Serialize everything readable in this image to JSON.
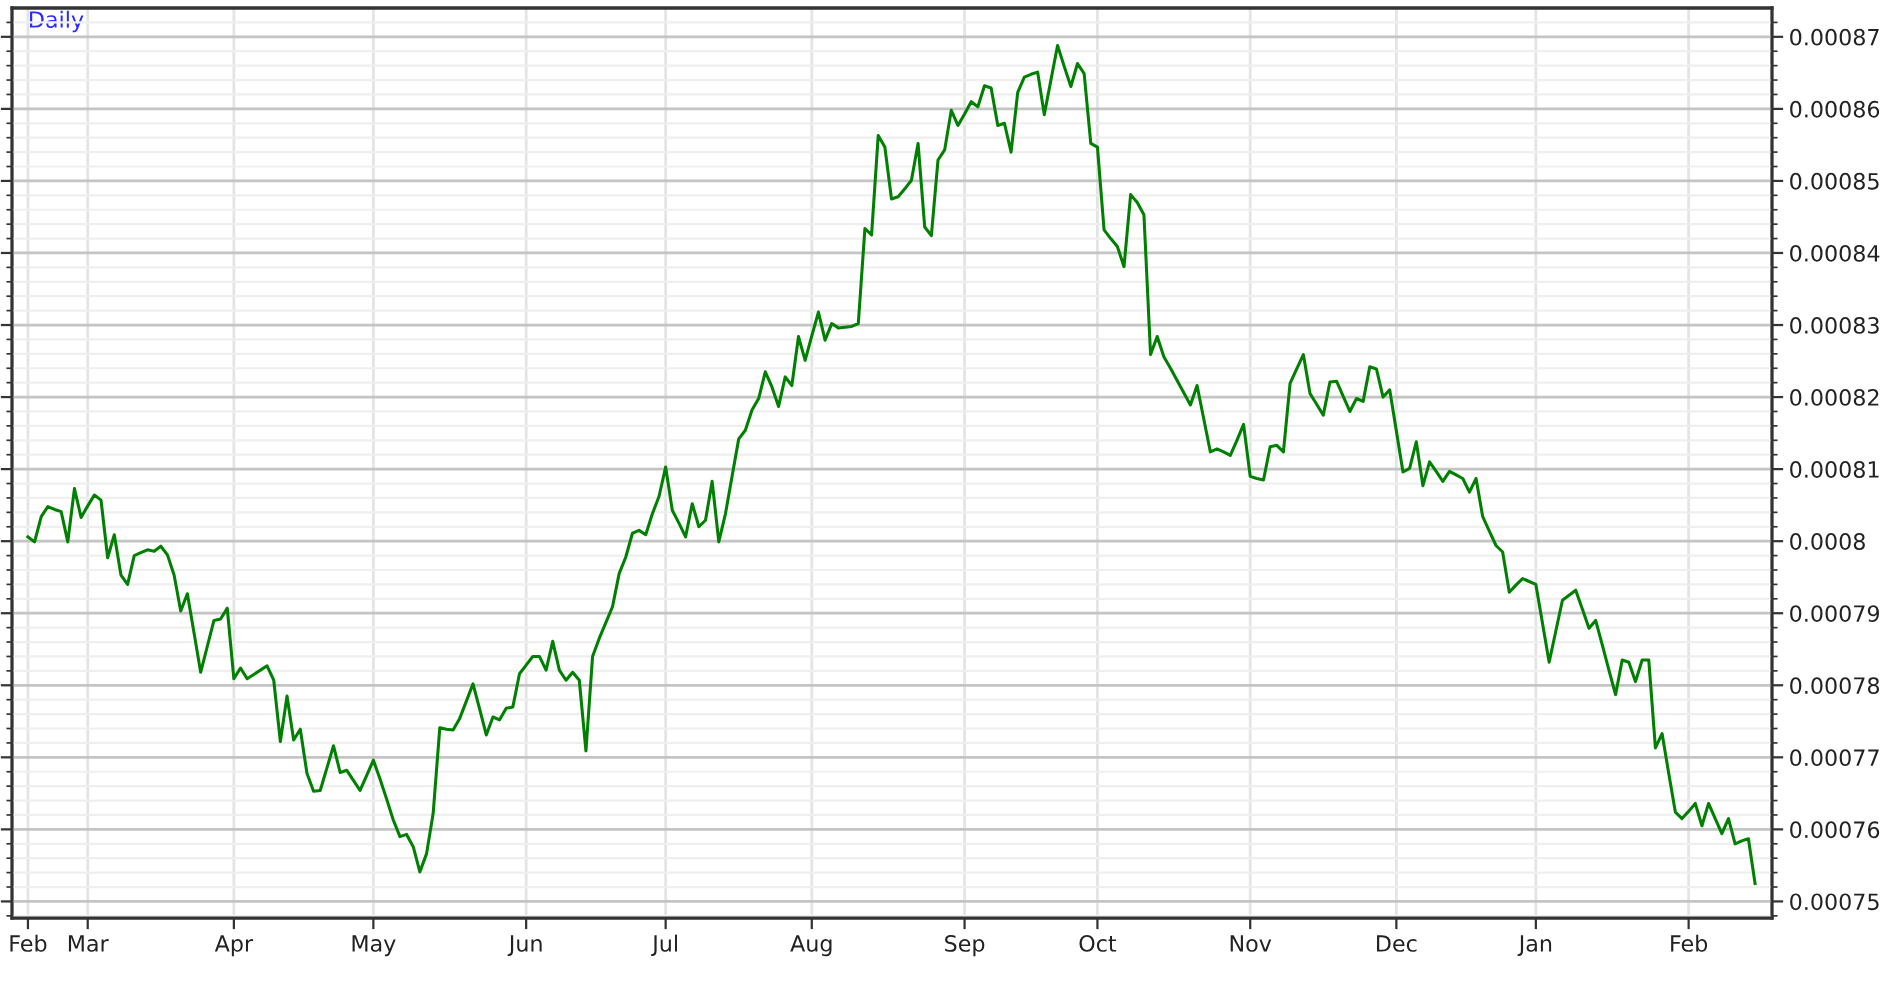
{
  "chart_data": {
    "type": "line",
    "title": "Daily",
    "categories": [
      "Feb",
      null,
      null,
      null,
      null,
      null,
      null,
      null,
      null,
      "Mar",
      null,
      null,
      null,
      null,
      null,
      null,
      null,
      null,
      null,
      null,
      null,
      null,
      null,
      null,
      null,
      null,
      null,
      null,
      null,
      null,
      null,
      "Apr",
      null,
      null,
      null,
      null,
      null,
      null,
      null,
      null,
      null,
      null,
      null,
      null,
      null,
      null,
      null,
      null,
      null,
      null,
      null,
      null,
      "May",
      null,
      null,
      null,
      null,
      null,
      null,
      null,
      null,
      null,
      null,
      null,
      null,
      null,
      null,
      null,
      null,
      null,
      null,
      null,
      null,
      null,
      null,
      "Jun",
      null,
      null,
      null,
      null,
      null,
      null,
      null,
      null,
      null,
      null,
      null,
      null,
      null,
      null,
      null,
      null,
      null,
      null,
      null,
      null,
      "Jul",
      null,
      null,
      null,
      null,
      null,
      null,
      null,
      null,
      null,
      null,
      null,
      null,
      null,
      null,
      null,
      null,
      null,
      null,
      null,
      null,
      null,
      "Aug",
      null,
      null,
      null,
      null,
      null,
      null,
      null,
      null,
      null,
      null,
      null,
      null,
      null,
      null,
      null,
      null,
      null,
      null,
      null,
      null,
      null,
      null,
      "Sep",
      null,
      null,
      null,
      null,
      null,
      null,
      null,
      null,
      null,
      null,
      null,
      null,
      null,
      null,
      null,
      null,
      null,
      null,
      null,
      "Oct",
      null,
      null,
      null,
      null,
      null,
      null,
      null,
      null,
      null,
      null,
      null,
      null,
      null,
      null,
      null,
      null,
      null,
      null,
      null,
      null,
      null,
      null,
      "Nov",
      null,
      null,
      null,
      null,
      null,
      null,
      null,
      null,
      null,
      null,
      null,
      null,
      null,
      null,
      null,
      null,
      null,
      null,
      null,
      null,
      null,
      "Dec",
      null,
      null,
      null,
      null,
      null,
      null,
      null,
      null,
      null,
      null,
      null,
      null,
      null,
      null,
      null,
      null,
      null,
      null,
      null,
      null,
      "Jan",
      null,
      null,
      null,
      null,
      null,
      null,
      null,
      null,
      null,
      null,
      null,
      null,
      null,
      null,
      null,
      null,
      null,
      null,
      null,
      null,
      null,
      null,
      "Feb",
      null,
      null,
      null,
      null,
      null,
      null,
      null,
      null,
      null,
      null
    ],
    "series": [
      {
        "axis": "y2",
        "color": "#008000",
        "values": [
          0.0008006,
          0.0007999,
          0.0008034,
          0.0008048,
          0.0008044,
          0.0008041,
          0.0007999,
          0.0008073,
          0.0008033,
          0.0008049,
          0.0008064,
          0.0008057,
          0.0007977,
          0.0008009,
          0.0007953,
          0.000794,
          0.000798,
          0.0007984,
          0.0007988,
          0.0007986,
          0.0007993,
          0.0007981,
          0.0007953,
          0.0007903,
          0.0007927,
          0.0007873,
          0.0007818,
          0.0007854,
          0.000789,
          0.0007892,
          0.0007907,
          0.0007809,
          0.0007824,
          0.0007809,
          0.0007815,
          0.0007821,
          0.0007827,
          0.0007807,
          0.0007722,
          0.0007785,
          0.0007724,
          0.0007739,
          0.0007678,
          0.0007653,
          0.0007654,
          0.0007685,
          0.0007716,
          0.0007679,
          0.0007682,
          0.0007668,
          0.0007654,
          0.0007675,
          0.0007696,
          0.000767,
          0.0007642,
          0.0007613,
          0.000759,
          0.0007593,
          0.0007576,
          0.0007541,
          0.0007566,
          0.0007622,
          0.0007741,
          0.0007739,
          0.0007738,
          0.0007754,
          0.0007778,
          0.0007802,
          0.0007767,
          0.0007731,
          0.0007756,
          0.0007752,
          0.0007768,
          0.000777,
          0.0007816,
          0.0007828,
          0.000784,
          0.000784,
          0.0007821,
          0.0007861,
          0.0007821,
          0.0007807,
          0.0007818,
          0.0007807,
          0.0007709,
          0.000784,
          0.0007865,
          0.0007887,
          0.0007909,
          0.0007955,
          0.0007978,
          0.0008011,
          0.0008015,
          0.0008009,
          0.0008038,
          0.0008062,
          0.0008103,
          0.0008043,
          0.0008025,
          0.0008006,
          0.0008052,
          0.000802,
          0.0008029,
          0.0008083,
          0.0007999,
          0.0008038,
          0.000809,
          0.0008142,
          0.0008154,
          0.0008182,
          0.0008198,
          0.0008235,
          0.0008214,
          0.0008187,
          0.0008228,
          0.0008216,
          0.0008284,
          0.0008251,
          0.0008285,
          0.0008318,
          0.0008279,
          0.0008302,
          0.0008296,
          0.0008297,
          0.0008298,
          0.0008302,
          0.0008434,
          0.0008425,
          0.0008563,
          0.0008547,
          0.0008475,
          0.0008478,
          0.0008489,
          0.0008501,
          0.0008552,
          0.0008436,
          0.0008424,
          0.0008529,
          0.0008543,
          0.0008598,
          0.0008577,
          0.0008593,
          0.000861,
          0.0008603,
          0.0008632,
          0.0008629,
          0.0008577,
          0.000858,
          0.000854,
          0.0008623,
          0.0008644,
          0.0008648,
          0.0008651,
          0.0008592,
          0.000864,
          0.0008688,
          0.0008659,
          0.0008631,
          0.0008663,
          0.0008649,
          0.0008552,
          0.0008547,
          0.0008432,
          0.000842,
          0.0008409,
          0.0008381,
          0.0008481,
          0.000847,
          0.0008453,
          0.0008259,
          0.0008284,
          0.0008256,
          0.000824,
          0.0008223,
          0.0008206,
          0.0008189,
          0.0008216,
          0.000817,
          0.0008124,
          0.0008128,
          0.0008124,
          0.0008119,
          0.000814,
          0.0008162,
          0.000809,
          0.0008087,
          0.0008085,
          0.0008131,
          0.0008133,
          0.0008124,
          0.0008219,
          0.0008239,
          0.0008259,
          0.0008205,
          0.000819,
          0.0008175,
          0.0008221,
          0.0008222,
          0.0008201,
          0.000818,
          0.0008198,
          0.0008194,
          0.0008242,
          0.0008239,
          0.00082,
          0.000821,
          0.0008153,
          0.0008096,
          0.0008101,
          0.0008138,
          0.0008077,
          0.000811,
          0.0008097,
          0.0008083,
          0.0008097,
          0.0008092,
          0.0008087,
          0.0008068,
          0.0008087,
          0.0008034,
          0.0008014,
          0.0007994,
          0.0007985,
          0.0007929,
          0.0007939,
          0.0007948,
          0.0007944,
          0.000794,
          0.0007886,
          0.0007832,
          0.0007875,
          0.0007918,
          0.0007925,
          0.0007932,
          0.0007906,
          0.0007879,
          0.000789,
          0.0007856,
          0.0007821,
          0.0007787,
          0.0007835,
          0.0007832,
          0.0007805,
          0.0007835,
          0.0007835,
          0.0007713,
          0.0007733,
          0.0007678,
          0.0007624,
          0.0007615,
          0.0007625,
          0.0007636,
          0.0007605,
          0.0007636,
          0.0007615,
          0.0007594,
          0.0007615,
          0.000758,
          0.0007584,
          0.0007587,
          0.0007525
        ]
      }
    ],
    "y2lim": [
      0.0007477,
      0.000874
    ],
    "y2ticks": [
      0.00075,
      0.00076,
      0.00077,
      0.00078,
      0.00079,
      0.0008,
      0.00081,
      0.00082,
      0.00083,
      0.00084,
      0.00085,
      0.00086,
      0.00087
    ],
    "grid": true
  }
}
